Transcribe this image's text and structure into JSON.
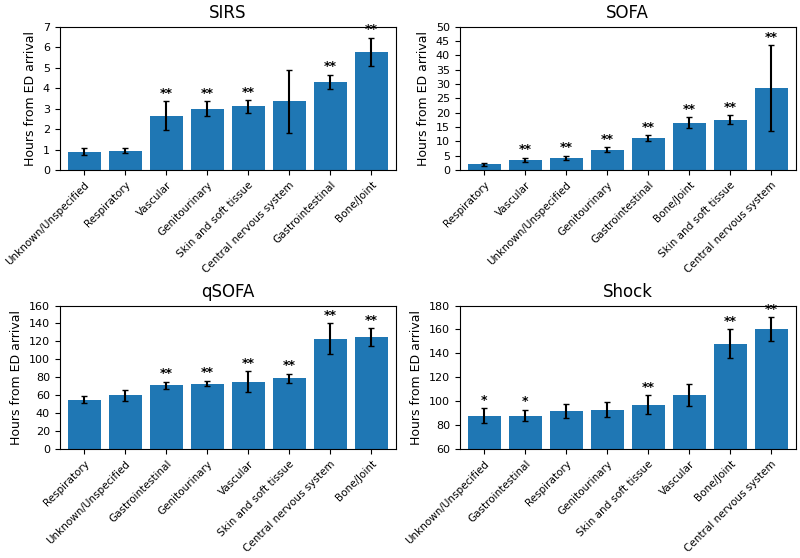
{
  "chart_data": [
    {
      "type": "bar",
      "title": "SIRS",
      "categories": [
        "Unknown/Unspecified",
        "Respiratory",
        "Vascular",
        "Genitourinary",
        "Skin and soft tissue",
        "Central nervous system",
        "Gastrointestinal",
        "Bone/Joint"
      ],
      "values": [
        0.9,
        0.95,
        2.65,
        3.0,
        3.1,
        3.35,
        4.3,
        5.75
      ],
      "errors": [
        0.15,
        0.1,
        0.7,
        0.35,
        0.3,
        1.55,
        0.35,
        0.7
      ],
      "annotations": [
        null,
        null,
        "**",
        "**",
        "**",
        null,
        "**",
        "**"
      ],
      "ylim": [
        0,
        7
      ],
      "yticks": [
        0,
        1,
        2,
        3,
        4,
        5,
        6,
        7
      ],
      "ylabel": "Hours from ED arrival",
      "grid": false
    },
    {
      "type": "bar",
      "title": "SOFA",
      "categories": [
        "Respiratory",
        "Vascular",
        "Unknown/Unspecified",
        "Genitourinary",
        "Gastrointestinal",
        "Bone/Joint",
        "Skin and soft tissue",
        "Central nervous system"
      ],
      "values": [
        2.0,
        3.5,
        4.3,
        7.0,
        11.2,
        16.5,
        17.5,
        28.5
      ],
      "errors": [
        0.5,
        0.8,
        0.7,
        0.9,
        1.0,
        2.0,
        1.5,
        15.0
      ],
      "annotations": [
        null,
        "**",
        "**",
        "**",
        "**",
        "**",
        "**",
        "**"
      ],
      "ylim": [
        0,
        50
      ],
      "yticks": [
        0,
        5,
        10,
        15,
        20,
        25,
        30,
        35,
        40,
        45,
        50
      ],
      "ylabel": "Hours from ED arrival",
      "grid": false
    },
    {
      "type": "bar",
      "title": "qSOFA",
      "categories": [
        "Respiratory",
        "Unknown/Unspecified",
        "Gastrointestinal",
        "Genitourinary",
        "Vascular",
        "Skin and soft tissue",
        "Central nervous system",
        "Bone/Joint"
      ],
      "values": [
        55,
        60,
        71,
        73,
        75,
        79,
        123,
        125
      ],
      "errors": [
        4,
        6,
        4,
        3,
        12,
        5,
        17,
        10
      ],
      "annotations": [
        null,
        null,
        "**",
        "**",
        "**",
        "**",
        "**",
        "**"
      ],
      "ylim": [
        0,
        160
      ],
      "yticks": [
        0,
        20,
        40,
        60,
        80,
        100,
        120,
        140,
        160
      ],
      "ylabel": "Hours from ED arrival",
      "grid": false
    },
    {
      "type": "bar",
      "title": "Shock",
      "categories": [
        "Unknown/Unspecified",
        "Gastrointestinal",
        "Respiratory",
        "Genitourinary",
        "Skin and soft tissue",
        "Vascular",
        "Bone/Joint",
        "Central nervous system"
      ],
      "values": [
        88,
        88,
        92,
        93,
        97,
        105,
        148,
        160
      ],
      "errors": [
        6,
        5,
        6,
        6,
        8,
        9,
        12,
        10
      ],
      "annotations": [
        "*",
        "*",
        null,
        null,
        "**",
        null,
        "**",
        "**"
      ],
      "ylim": [
        60,
        180
      ],
      "yticks": [
        60,
        80,
        100,
        120,
        140,
        160,
        180
      ],
      "ylabel": "Hours from ED arrival",
      "grid": false
    }
  ]
}
